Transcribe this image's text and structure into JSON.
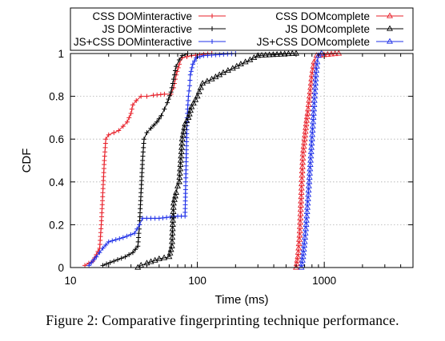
{
  "caption": "Figure 2: Comparative fingerprinting technique performance.",
  "chart_data": {
    "type": "line",
    "xlabel": "Time (ms)",
    "ylabel": "CDF",
    "xscale": "log",
    "xlim": [
      10,
      5000
    ],
    "ylim": [
      0,
      1
    ],
    "x_ticks": [
      10,
      100,
      1000
    ],
    "x_tick_labels": [
      "10",
      "100",
      "1000"
    ],
    "y_ticks": [
      0,
      0.2,
      0.4,
      0.6,
      0.8,
      1
    ],
    "y_tick_labels": [
      "0",
      "0.2",
      "0.4",
      "0.6",
      "0.8",
      "1"
    ],
    "grid": true,
    "legend_position": "top",
    "series": [
      {
        "name": "CSS DOMinteractive",
        "color": "#e8202a",
        "marker": "plus",
        "points": [
          [
            13,
            0.01
          ],
          [
            15,
            0.03
          ],
          [
            16,
            0.06
          ],
          [
            17,
            0.09
          ],
          [
            17.5,
            0.2
          ],
          [
            18,
            0.35
          ],
          [
            18.5,
            0.5
          ],
          [
            19,
            0.6
          ],
          [
            20,
            0.62
          ],
          [
            22,
            0.63
          ],
          [
            24,
            0.64
          ],
          [
            26,
            0.66
          ],
          [
            28,
            0.68
          ],
          [
            30,
            0.72
          ],
          [
            31,
            0.76
          ],
          [
            33,
            0.78
          ],
          [
            36,
            0.8
          ],
          [
            40,
            0.8
          ],
          [
            45,
            0.805
          ],
          [
            55,
            0.81
          ],
          [
            62,
            0.81
          ],
          [
            65,
            0.84
          ],
          [
            68,
            0.9
          ],
          [
            72,
            0.95
          ],
          [
            76,
            0.98
          ],
          [
            90,
            0.99
          ],
          [
            130,
            1.0
          ]
        ]
      },
      {
        "name": "JS DOMinteractive",
        "color": "#000000",
        "marker": "plus",
        "points": [
          [
            18,
            0.01
          ],
          [
            22,
            0.03
          ],
          [
            27,
            0.05
          ],
          [
            31,
            0.07
          ],
          [
            34,
            0.1
          ],
          [
            35,
            0.2
          ],
          [
            36,
            0.35
          ],
          [
            37,
            0.5
          ],
          [
            38,
            0.6
          ],
          [
            40,
            0.63
          ],
          [
            43,
            0.65
          ],
          [
            48,
            0.68
          ],
          [
            52,
            0.71
          ],
          [
            55,
            0.74
          ],
          [
            58,
            0.77
          ],
          [
            62,
            0.82
          ],
          [
            64,
            0.86
          ],
          [
            66,
            0.9
          ],
          [
            68,
            0.94
          ],
          [
            72,
            0.97
          ],
          [
            76,
            0.99
          ],
          [
            84,
            1.0
          ]
        ]
      },
      {
        "name": "JS+CSS DOMinteractive",
        "color": "#1f30e8",
        "marker": "plus",
        "points": [
          [
            14,
            0.01
          ],
          [
            16,
            0.05
          ],
          [
            18,
            0.09
          ],
          [
            20,
            0.12
          ],
          [
            26,
            0.14
          ],
          [
            32,
            0.16
          ],
          [
            35,
            0.2
          ],
          [
            37,
            0.23
          ],
          [
            50,
            0.23
          ],
          [
            70,
            0.24
          ],
          [
            80,
            0.24
          ],
          [
            81,
            0.4
          ],
          [
            82,
            0.55
          ],
          [
            83,
            0.7
          ],
          [
            85,
            0.8
          ],
          [
            87,
            0.85
          ],
          [
            88,
            0.9
          ],
          [
            92,
            0.95
          ],
          [
            98,
            0.98
          ],
          [
            112,
            0.99
          ],
          [
            200,
            1.0
          ]
        ]
      },
      {
        "name": "CSS DOMcomplete",
        "color": "#e8202a",
        "marker": "triangle",
        "points": [
          [
            600,
            0.0
          ],
          [
            620,
            0.05
          ],
          [
            640,
            0.15
          ],
          [
            650,
            0.25
          ],
          [
            660,
            0.35
          ],
          [
            670,
            0.45
          ],
          [
            680,
            0.53
          ],
          [
            700,
            0.6
          ],
          [
            720,
            0.67
          ],
          [
            740,
            0.72
          ],
          [
            760,
            0.78
          ],
          [
            780,
            0.84
          ],
          [
            800,
            0.9
          ],
          [
            830,
            0.96
          ],
          [
            870,
            0.99
          ],
          [
            1300,
            1.0
          ]
        ]
      },
      {
        "name": "JS DOMcomplete",
        "color": "#000000",
        "marker": "triangle",
        "points": [
          [
            34,
            0.0
          ],
          [
            36,
            0.01
          ],
          [
            40,
            0.02
          ],
          [
            50,
            0.04
          ],
          [
            60,
            0.05
          ],
          [
            63,
            0.1
          ],
          [
            64,
            0.2
          ],
          [
            65,
            0.3
          ],
          [
            68,
            0.35
          ],
          [
            70,
            0.38
          ],
          [
            72,
            0.4
          ],
          [
            74,
            0.5
          ],
          [
            76,
            0.6
          ],
          [
            80,
            0.67
          ],
          [
            85,
            0.7
          ],
          [
            90,
            0.75
          ],
          [
            100,
            0.8
          ],
          [
            110,
            0.86
          ],
          [
            130,
            0.88
          ],
          [
            160,
            0.91
          ],
          [
            190,
            0.93
          ],
          [
            220,
            0.95
          ],
          [
            260,
            0.97
          ],
          [
            300,
            0.99
          ],
          [
            600,
            1.0
          ]
        ]
      },
      {
        "name": "JS+CSS DOMcomplete",
        "color": "#1f30e8",
        "marker": "triangle",
        "points": [
          [
            660,
            0.0
          ],
          [
            680,
            0.05
          ],
          [
            700,
            0.12
          ],
          [
            720,
            0.2
          ],
          [
            740,
            0.3
          ],
          [
            760,
            0.4
          ],
          [
            780,
            0.5
          ],
          [
            800,
            0.6
          ],
          [
            820,
            0.7
          ],
          [
            840,
            0.8
          ],
          [
            860,
            0.9
          ],
          [
            880,
            0.96
          ],
          [
            900,
            0.99
          ],
          [
            950,
            1.0
          ]
        ]
      }
    ]
  }
}
